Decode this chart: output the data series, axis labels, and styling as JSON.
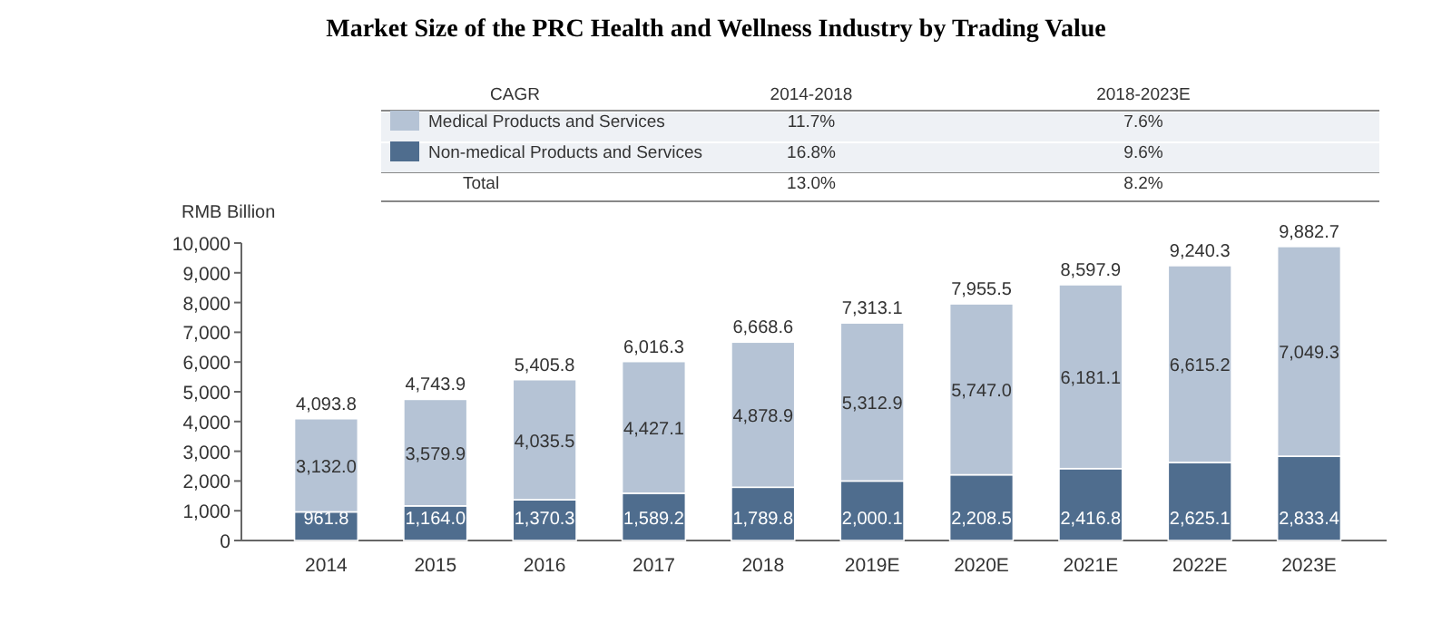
{
  "chart_data": {
    "type": "bar",
    "title": "Market Size of the PRC Health and Wellness Industry by Trading Value",
    "ylabel": "RMB Billion",
    "categories": [
      "2014",
      "2015",
      "2016",
      "2017",
      "2018",
      "2019E",
      "2020E",
      "2021E",
      "2022E",
      "2023E"
    ],
    "stacked": true,
    "legend": "top",
    "grid": false,
    "series": [
      {
        "name": "Non-medical Products and Services",
        "color": "#4f6d8e",
        "values": [
          961.8,
          1164.0,
          1370.3,
          1589.2,
          1789.8,
          2000.1,
          2208.5,
          2416.8,
          2625.1,
          2833.4
        ],
        "value_labels": [
          "961.8",
          "1,164.0",
          "1,370.3",
          "1,589.2",
          "1,789.8",
          "2,000.1",
          "2,208.5",
          "2,416.8",
          "2,625.1",
          "2,833.4"
        ]
      },
      {
        "name": "Medical Products and Services",
        "color": "#b5c3d5",
        "values": [
          3132.0,
          3579.9,
          4035.5,
          4427.1,
          4878.9,
          5312.9,
          5747.0,
          6181.1,
          6615.2,
          7049.3
        ],
        "value_labels": [
          "3,132.0",
          "3,579.9",
          "4,035.5",
          "4,427.1",
          "4,878.9",
          "5,312.9",
          "5,747.0",
          "6,181.1",
          "6,615.2",
          "7,049.3"
        ]
      }
    ],
    "totals": [
      "4,093.8",
      "4,743.9",
      "5,405.8",
      "6,016.3",
      "6,668.6",
      "7,313.1",
      "7,955.5",
      "8,597.9",
      "9,240.3",
      "9,882.7"
    ],
    "ylim": [
      0,
      10000
    ],
    "yticks": [
      0,
      {
        "value": 1000,
        "label": "1,000"
      },
      {
        "value": 2000,
        "label": "2,000"
      },
      {
        "value": 3000,
        "label": "3,000"
      },
      {
        "value": 4000,
        "label": "4,000"
      },
      {
        "value": 5000,
        "label": "5,000"
      },
      {
        "value": 6000,
        "label": "6,000"
      },
      {
        "value": 7000,
        "label": "7,000"
      },
      {
        "value": 8000,
        "label": "8,000"
      },
      {
        "value": 9000,
        "label": "9,000"
      },
      {
        "value": 10000,
        "label": "10,000"
      }
    ],
    "annotations": [
      "CAGR",
      "2014-2018",
      "2018-2023E",
      "11.7%",
      "7.6%",
      "16.8%",
      "9.6%",
      "Total",
      "13.0%",
      "8.2%"
    ]
  }
}
